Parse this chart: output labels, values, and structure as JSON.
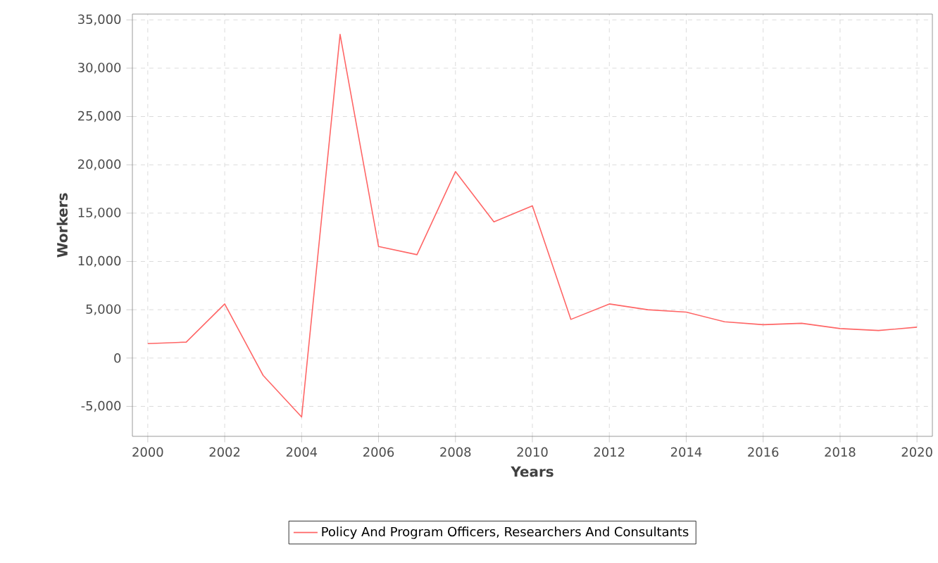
{
  "chart_data": {
    "type": "line",
    "xlabel": "Years",
    "ylabel": "Workers",
    "x": [
      2000,
      2001,
      2002,
      2003,
      2004,
      2005,
      2006,
      2007,
      2008,
      2009,
      2010,
      2011,
      2012,
      2013,
      2014,
      2015,
      2016,
      2017,
      2018,
      2019,
      2020
    ],
    "series": [
      {
        "name": "Policy And Program Officers, Researchers And Consultants",
        "color": "#ff6666",
        "values": [
          1500,
          1650,
          5600,
          -1800,
          -6100,
          33500,
          11550,
          10700,
          19300,
          14100,
          15750,
          4000,
          5600,
          5000,
          4750,
          3750,
          3450,
          3600,
          3050,
          2850,
          3200
        ]
      }
    ],
    "xlim": [
      1999.6,
      2020.4
    ],
    "ylim": [
      -8100,
      35600
    ],
    "xticks": [
      2000,
      2002,
      2004,
      2006,
      2008,
      2010,
      2012,
      2014,
      2016,
      2018,
      2020
    ],
    "yticks": [
      {
        "value": -5000,
        "label": "-5,000"
      },
      {
        "value": 0,
        "label": "0"
      },
      {
        "value": 5000,
        "label": "5,000"
      },
      {
        "value": 10000,
        "label": "10,000"
      },
      {
        "value": 15000,
        "label": "15,000"
      },
      {
        "value": 20000,
        "label": "20,000"
      },
      {
        "value": 25000,
        "label": "25,000"
      },
      {
        "value": 30000,
        "label": "30,000"
      },
      {
        "value": 35000,
        "label": "35,000"
      }
    ],
    "grid": true,
    "legend": "bottom",
    "marker": "none",
    "line_style": "solid"
  }
}
